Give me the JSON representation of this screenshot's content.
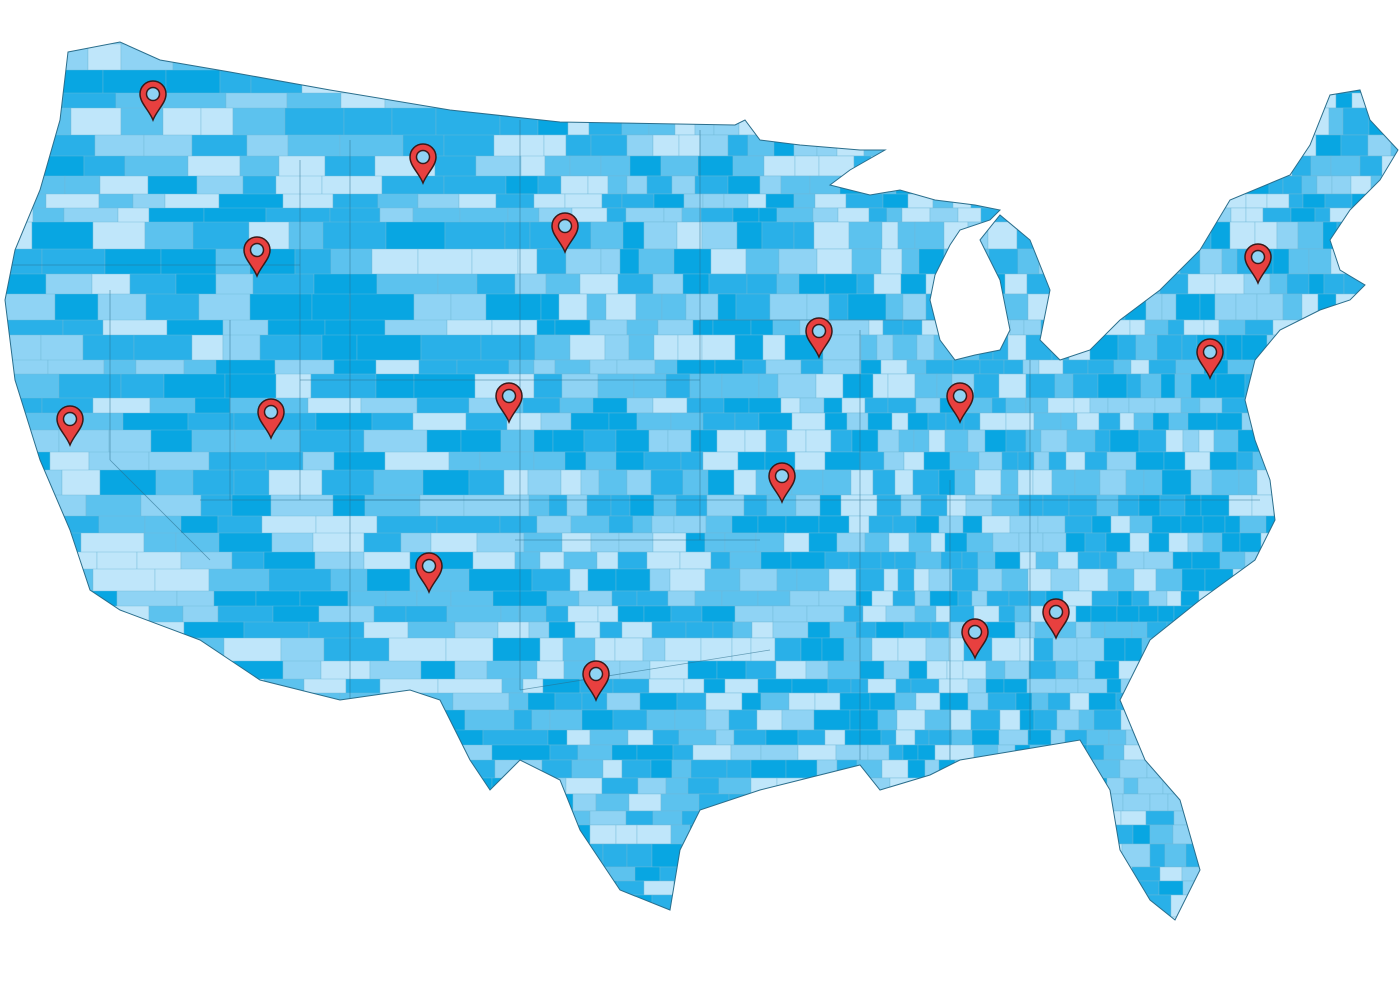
{
  "map": {
    "region": "contiguous-united-states",
    "style": "county choropleth",
    "colors": {
      "background": "#ffffff",
      "shades": [
        "#bfe6fa",
        "#8fd3f4",
        "#5cc2ee",
        "#29b0e8",
        "#08a6e2"
      ],
      "borders": "#2a6e8c",
      "pin_fill": "#e8403f",
      "pin_outline": "#3a1a1a",
      "pin_center": "#8fd3f4"
    },
    "markers": {
      "icon": "map-pin-icon",
      "count": 16
    }
  }
}
